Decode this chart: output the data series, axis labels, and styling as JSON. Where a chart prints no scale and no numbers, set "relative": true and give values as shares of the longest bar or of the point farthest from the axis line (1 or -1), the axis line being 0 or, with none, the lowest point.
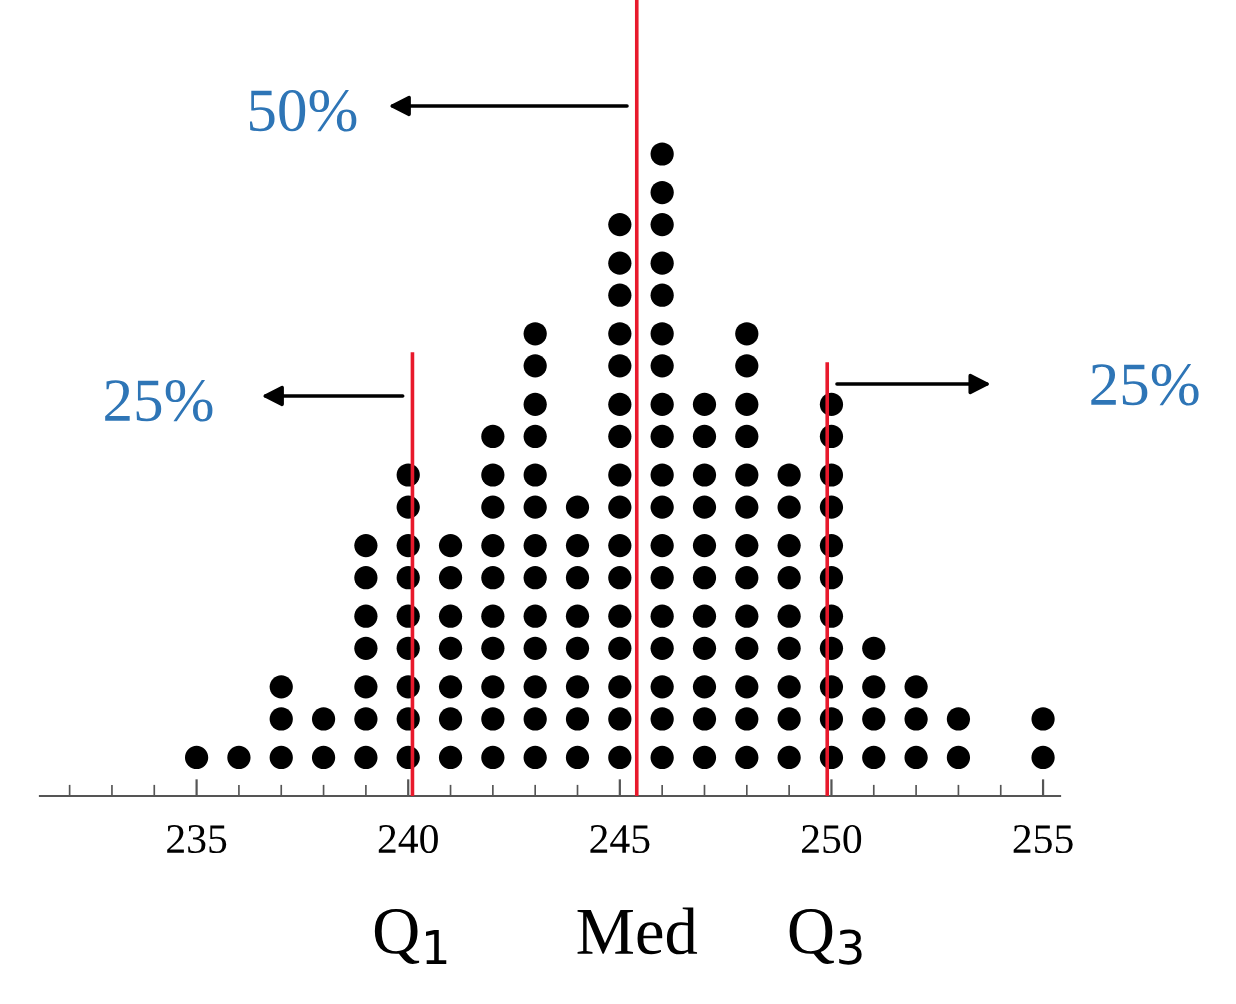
{
  "chart_data": {
    "type": "scatter",
    "relative": true,
    "marker": "circle",
    "series": [
      {
        "color": "#000000",
        "x": [
          235,
          236,
          237,
          237,
          237,
          238,
          238,
          239,
          239,
          239,
          239,
          239,
          239,
          239,
          240,
          240,
          240,
          240,
          240,
          240,
          240,
          240,
          240,
          241,
          241,
          241,
          241,
          241,
          241,
          241,
          242,
          242,
          242,
          242,
          242,
          242,
          242,
          242,
          242,
          242,
          243,
          243,
          243,
          243,
          243,
          243,
          243,
          243,
          243,
          243,
          243,
          243,
          243,
          244,
          244,
          244,
          244,
          244,
          244,
          244,
          244,
          245,
          245,
          245,
          245,
          245,
          245,
          245,
          245,
          245,
          245,
          245,
          245,
          245,
          245,
          245,
          245,
          246,
          246,
          246,
          246,
          246,
          246,
          246,
          246,
          246,
          246,
          246,
          246,
          246,
          246,
          246,
          246,
          246,
          246,
          247,
          247,
          247,
          247,
          247,
          247,
          247,
          247,
          247,
          247,
          247,
          248,
          248,
          248,
          248,
          248,
          248,
          248,
          248,
          248,
          248,
          248,
          248,
          248,
          249,
          249,
          249,
          249,
          249,
          249,
          249,
          249,
          249,
          250,
          250,
          250,
          250,
          250,
          250,
          250,
          250,
          250,
          250,
          250,
          251,
          251,
          251,
          251,
          252,
          252,
          252,
          253,
          253,
          255,
          255
        ],
        "values": [
          0.06,
          0.06,
          0.06,
          0.12,
          0.17,
          0.06,
          0.12,
          0.06,
          0.12,
          0.17,
          0.23,
          0.28,
          0.34,
          0.39,
          0.06,
          0.12,
          0.17,
          0.23,
          0.28,
          0.34,
          0.39,
          0.45,
          0.5,
          0.06,
          0.12,
          0.17,
          0.23,
          0.28,
          0.34,
          0.39,
          0.06,
          0.12,
          0.17,
          0.23,
          0.28,
          0.34,
          0.39,
          0.45,
          0.5,
          0.56,
          0.06,
          0.12,
          0.17,
          0.23,
          0.28,
          0.34,
          0.39,
          0.45,
          0.5,
          0.56,
          0.61,
          0.67,
          0.72,
          0.06,
          0.12,
          0.17,
          0.23,
          0.28,
          0.34,
          0.39,
          0.45,
          0.06,
          0.12,
          0.17,
          0.23,
          0.28,
          0.34,
          0.39,
          0.45,
          0.5,
          0.56,
          0.61,
          0.67,
          0.72,
          0.78,
          0.83,
          0.89,
          0.06,
          0.12,
          0.17,
          0.23,
          0.28,
          0.34,
          0.39,
          0.45,
          0.5,
          0.56,
          0.61,
          0.67,
          0.72,
          0.78,
          0.83,
          0.89,
          0.94,
          1,
          0.06,
          0.12,
          0.17,
          0.23,
          0.28,
          0.34,
          0.39,
          0.45,
          0.5,
          0.56,
          0.61,
          0.06,
          0.12,
          0.17,
          0.23,
          0.28,
          0.34,
          0.39,
          0.45,
          0.5,
          0.56,
          0.61,
          0.67,
          0.72,
          0.06,
          0.12,
          0.17,
          0.23,
          0.28,
          0.34,
          0.39,
          0.45,
          0.5,
          0.06,
          0.12,
          0.17,
          0.23,
          0.28,
          0.34,
          0.39,
          0.45,
          0.5,
          0.56,
          0.61,
          0.06,
          0.12,
          0.17,
          0.23,
          0.06,
          0.12,
          0.17,
          0.06,
          0.12,
          0.06,
          0.12
        ]
      }
    ],
    "xlim": [
      231.3,
      255.4
    ],
    "xticks": [
      235,
      240,
      245,
      250,
      255
    ],
    "ref_lines": [
      {
        "axis": "x",
        "value": 240.1,
        "label": "Q$_{1}$",
        "color": "#e8192c"
      },
      {
        "axis": "x",
        "value": 245.4,
        "label": "Med",
        "color": "#e8192c"
      },
      {
        "axis": "x",
        "value": 249.9,
        "label": "Q$_{3}$",
        "color": "#e8192c"
      }
    ],
    "annotations": [
      "50%",
      "25%",
      "25%"
    ],
    "grid": false
  }
}
